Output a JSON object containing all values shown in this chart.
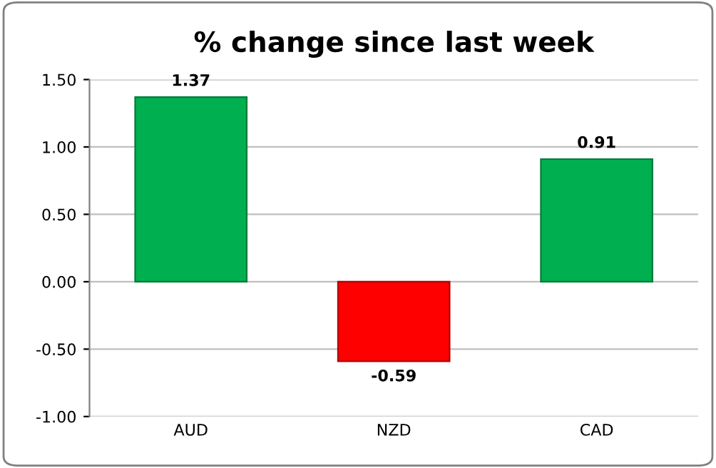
{
  "chart_data": {
    "type": "bar",
    "title": "% change since last week",
    "categories": [
      "AUD",
      "NZD",
      "CAD"
    ],
    "values": [
      1.37,
      -0.59,
      0.91
    ],
    "colors": [
      "#00b050",
      "#ff0000",
      "#00b050"
    ],
    "ylim": [
      -1.0,
      1.5
    ],
    "yticks": [
      {
        "value": -1.0,
        "label": "-1.00"
      },
      {
        "value": -0.5,
        "label": "-0.50"
      },
      {
        "value": 0.0,
        "label": "0.00"
      },
      {
        "value": 0.5,
        "label": "0.50"
      },
      {
        "value": 1.0,
        "label": "1.00"
      },
      {
        "value": 1.5,
        "label": "1.50"
      }
    ],
    "grid": "y",
    "data_labels": true
  }
}
